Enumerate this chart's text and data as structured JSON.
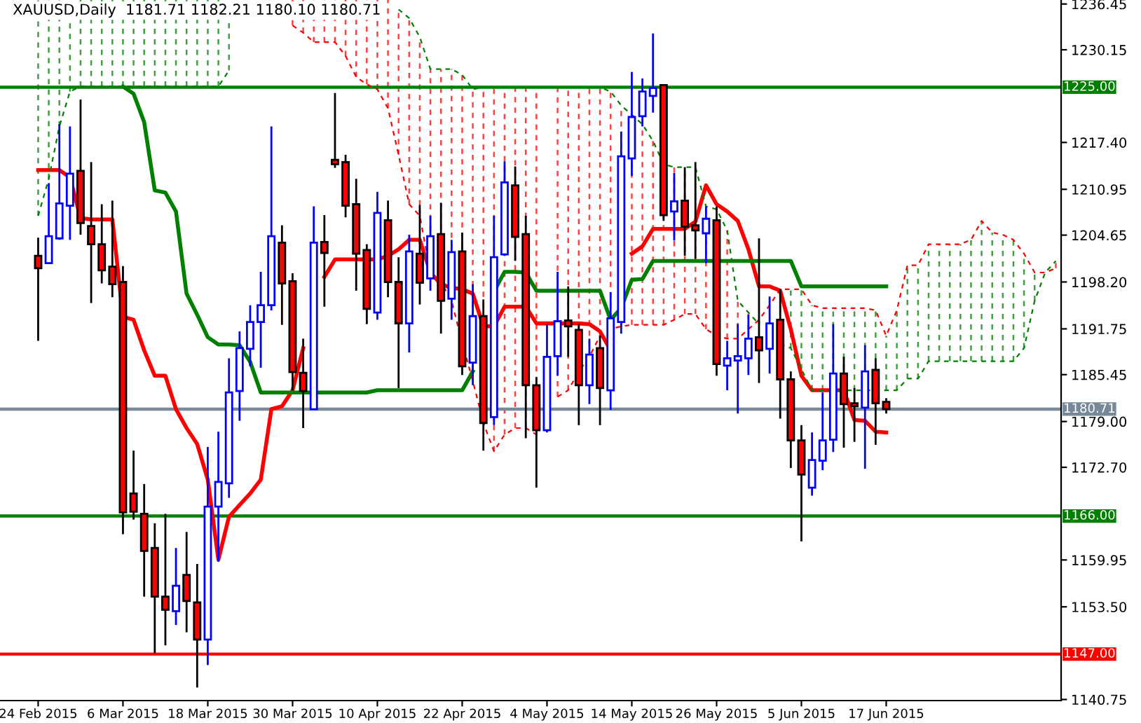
{
  "chart_data": {
    "type": "candlestick",
    "title": "XAUUSD,Daily  1181.71 1182.21 1180.10 1180.71",
    "categories": [
      "24 Feb 2015",
      null,
      null,
      null,
      null,
      null,
      null,
      null,
      "6 Mar 2015",
      null,
      null,
      null,
      null,
      null,
      null,
      null,
      "18 Mar 2015",
      null,
      null,
      null,
      null,
      null,
      null,
      null,
      "30 Mar 2015",
      null,
      null,
      null,
      null,
      null,
      null,
      null,
      "10 Apr 2015",
      null,
      null,
      null,
      null,
      null,
      null,
      null,
      "22 Apr 2015",
      null,
      null,
      null,
      null,
      null,
      null,
      null,
      "4 May 2015",
      null,
      null,
      null,
      null,
      null,
      null,
      null,
      "14 May 2015",
      null,
      null,
      null,
      null,
      null,
      null,
      null,
      "26 May 2015",
      null,
      null,
      null,
      null,
      null,
      null,
      null,
      "5 Jun 2015",
      null,
      null,
      null,
      null,
      null,
      null,
      null,
      "17 Jun 2015",
      null,
      null,
      null,
      null,
      null,
      null,
      null,
      null,
      null,
      null,
      null,
      null,
      null,
      null,
      null,
      null
    ],
    "ohlc": [
      [
        1201.8,
        1204.3,
        1190.1,
        1200.1
      ],
      [
        1200.8,
        1211.8,
        1200.7,
        1204.5
      ],
      [
        1204.2,
        1219.9,
        1204.0,
        1209.0
      ],
      [
        1208.7,
        1219.6,
        1204.0,
        1213.1
      ],
      [
        1213.5,
        1223.3,
        1204.7,
        1206.3
      ],
      [
        1205.9,
        1214.7,
        1195.3,
        1203.4
      ],
      [
        1203.4,
        1208.9,
        1198.0,
        1199.8
      ],
      [
        1200.3,
        1209.4,
        1196.1,
        1197.9
      ],
      [
        1198.2,
        1200.4,
        1163.5,
        1166.5
      ],
      [
        1169.1,
        1175.0,
        1165.5,
        1166.6
      ],
      [
        1166.3,
        1170.4,
        1154.9,
        1161.2
      ],
      [
        1161.6,
        1165.0,
        1147.1,
        1154.9
      ],
      [
        1154.9,
        1166.3,
        1148.2,
        1153.1
      ],
      [
        1152.9,
        1161.6,
        1151.0,
        1156.4
      ],
      [
        1157.9,
        1163.8,
        1150.0,
        1154.3
      ],
      [
        1154.1,
        1159.4,
        1142.4,
        1149.0
      ],
      [
        1149.0,
        1175.5,
        1145.5,
        1167.3
      ],
      [
        1167.3,
        1177.6,
        1159.7,
        1170.7
      ],
      [
        1170.5,
        1187.7,
        1168.5,
        1183.0
      ],
      [
        1183.2,
        1191.4,
        1179.1,
        1189.1
      ],
      [
        1189.0,
        1195.0,
        1186.6,
        1192.7
      ],
      [
        1192.7,
        1199.6,
        1186.4,
        1195.0
      ],
      [
        1195.0,
        1219.6,
        1194.3,
        1204.5
      ],
      [
        1203.6,
        1206.0,
        1192.3,
        1198.0
      ],
      [
        1198.3,
        1199.4,
        1183.3,
        1185.8
      ],
      [
        1185.7,
        1190.4,
        1178.1,
        1183.2
      ],
      [
        1180.7,
        1208.6,
        1180.6,
        1203.6
      ],
      [
        1203.7,
        1207.4,
        1194.8,
        1202.2
      ],
      [
        1215.0,
        1224.2,
        1213.9,
        1214.4
      ],
      [
        1214.7,
        1215.7,
        1207.1,
        1208.7
      ],
      [
        1208.9,
        1212.4,
        1197.0,
        1202.1
      ],
      [
        1202.6,
        1203.4,
        1192.4,
        1194.5
      ],
      [
        1194.0,
        1210.6,
        1193.0,
        1207.7
      ],
      [
        1206.7,
        1209.4,
        1196.1,
        1198.2
      ],
      [
        1198.2,
        1201.6,
        1183.6,
        1192.5
      ],
      [
        1192.5,
        1204.7,
        1188.5,
        1202.4
      ],
      [
        1202.1,
        1208.8,
        1195.1,
        1198.1
      ],
      [
        1198.7,
        1207.3,
        1197.0,
        1204.5
      ],
      [
        1204.8,
        1209.1,
        1191.1,
        1195.6
      ],
      [
        1195.9,
        1204.0,
        1193.0,
        1202.3
      ],
      [
        1202.4,
        1205.0,
        1185.4,
        1186.6
      ],
      [
        1187.1,
        1197.9,
        1184.0,
        1193.5
      ],
      [
        1193.5,
        1195.8,
        1175.0,
        1178.8
      ],
      [
        1179.6,
        1207.3,
        1178.5,
        1201.6
      ],
      [
        1202.0,
        1214.8,
        1201.8,
        1211.9
      ],
      [
        1211.5,
        1214.1,
        1201.1,
        1204.4
      ],
      [
        1204.8,
        1207.3,
        1176.7,
        1184.0
      ],
      [
        1184.0,
        1185.1,
        1169.9,
        1177.8
      ],
      [
        1177.8,
        1192.4,
        1177.5,
        1187.9
      ],
      [
        1188.0,
        1199.6,
        1185.3,
        1192.8
      ],
      [
        1192.9,
        1197.6,
        1187.9,
        1192.1
      ],
      [
        1191.6,
        1192.4,
        1178.5,
        1184.0
      ],
      [
        1184.0,
        1190.4,
        1181.4,
        1188.2
      ],
      [
        1189.1,
        1190.8,
        1178.5,
        1183.6
      ],
      [
        1183.3,
        1196.8,
        1180.6,
        1193.2
      ],
      [
        1192.7,
        1218.9,
        1191.1,
        1215.5
      ],
      [
        1215.2,
        1227.1,
        1212.8,
        1220.9
      ],
      [
        1221.0,
        1226.2,
        1219.6,
        1224.4
      ],
      [
        1223.8,
        1232.4,
        1221.5,
        1224.9
      ],
      [
        1225.3,
        1225.4,
        1206.6,
        1207.4
      ],
      [
        1207.9,
        1213.2,
        1203.9,
        1209.3
      ],
      [
        1209.4,
        1214.0,
        1201.8,
        1205.8
      ],
      [
        1206.0,
        1214.7,
        1201.4,
        1205.3
      ],
      [
        1204.9,
        1208.6,
        1200.8,
        1206.9
      ],
      [
        1206.7,
        1208.6,
        1185.3,
        1186.9
      ],
      [
        1186.7,
        1190.1,
        1183.3,
        1187.7
      ],
      [
        1187.4,
        1192.4,
        1180.1,
        1188.0
      ],
      [
        1187.7,
        1193.7,
        1185.4,
        1190.4
      ],
      [
        1190.6,
        1204.2,
        1184.3,
        1188.8
      ],
      [
        1189.0,
        1196.2,
        1185.6,
        1192.5
      ],
      [
        1193.0,
        1197.2,
        1179.4,
        1184.8
      ],
      [
        1184.8,
        1185.9,
        1172.6,
        1176.4
      ],
      [
        1176.4,
        1178.5,
        1162.5,
        1171.7
      ],
      [
        1169.9,
        1177.5,
        1168.8,
        1173.7
      ],
      [
        1173.6,
        1183.0,
        1172.3,
        1176.4
      ],
      [
        1176.5,
        1192.4,
        1174.8,
        1185.6
      ],
      [
        1185.6,
        1187.9,
        1175.4,
        1181.4
      ],
      [
        1181.5,
        1183.6,
        1176.2,
        1181.1
      ],
      [
        1180.9,
        1189.5,
        1172.5,
        1185.9
      ],
      [
        1186.1,
        1187.7,
        1175.8,
        1181.5
      ],
      [
        1181.71,
        1182.21,
        1180.1,
        1180.71
      ],
      null,
      null,
      null,
      null,
      null,
      null,
      null,
      null,
      null,
      null,
      null,
      null,
      null,
      null,
      null,
      null
    ],
    "series": [
      {
        "type": "line",
        "color": "#ff0000",
        "line_style": "solid",
        "values": [
          1213.6,
          1213.6,
          1213.6,
          1212.6,
          1207.0,
          1206.8,
          1206.8,
          1206.8,
          1193.4,
          1193.0,
          1188.8,
          1185.3,
          1185.3,
          1180.7,
          1178.1,
          1175.9,
          1171.0,
          1160.0,
          1165.9,
          1167.5,
          1169.1,
          1171.0,
          1180.7,
          1181.1,
          1183.3,
          1189.1,
          null,
          1198.9,
          1201.3,
          1201.3,
          1201.3,
          1201.3,
          1201.3,
          1201.8,
          1202.7,
          1204.0,
          1204.0,
          1199.5,
          1197.9,
          1197.4,
          1197.2,
          1196.6,
          1192.1,
          1192.1,
          1194.8,
          1194.8,
          1194.8,
          1192.5,
          1192.5,
          1192.5,
          1192.5,
          1192.5,
          1192.4,
          1191.4,
          1188.8,
          null,
          1202.1,
          1203.1,
          1205.5,
          1205.5,
          1205.5,
          1205.5,
          1206.5,
          1211.5,
          1208.9,
          1207.9,
          1206.6,
          1202.7,
          1197.6,
          1197.6,
          1197.0,
          1191.7,
          1185.3,
          1183.3,
          1183.3,
          1183.3,
          1183.3,
          1179.2,
          1179.1,
          1177.6,
          1177.5,
          null,
          null,
          null,
          null,
          null,
          null,
          null,
          null,
          null,
          null,
          null,
          null,
          null,
          null,
          null,
          null
        ]
      },
      {
        "type": "line",
        "color": "#008000",
        "line_style": "solid",
        "values": [
          null,
          null,
          null,
          null,
          null,
          null,
          null,
          null,
          1225.1,
          1224.1,
          1220.2,
          1210.8,
          1210.5,
          1207.9,
          1196.6,
          1193.7,
          1190.6,
          1189.6,
          1189.6,
          1189.5,
          1187.2,
          1183.0,
          1183.0,
          1183.0,
          1183.0,
          1183.0,
          1183.0,
          1183.0,
          1183.0,
          1183.0,
          1183.0,
          1183.0,
          1183.3,
          1183.3,
          1183.3,
          1183.3,
          1183.3,
          1183.3,
          1183.3,
          1183.3,
          1183.3,
          1185.9,
          null,
          1196.9,
          1199.6,
          1199.6,
          1199.5,
          1197.0,
          1197.0,
          1197.0,
          1197.0,
          1197.0,
          1197.0,
          1197.0,
          1193.0,
          1194.6,
          1198.5,
          1198.6,
          1201.1,
          1201.1,
          1201.1,
          1201.1,
          1201.1,
          1201.1,
          1201.1,
          1201.1,
          1201.1,
          1201.1,
          1201.1,
          1201.1,
          1201.1,
          1201.1,
          1197.6,
          1197.6,
          1197.6,
          1197.6,
          1197.6,
          1197.6,
          1197.6,
          1197.6,
          1197.6,
          null,
          null,
          null,
          null,
          null,
          null,
          null,
          null,
          null,
          null,
          null,
          null,
          null,
          null,
          null,
          null
        ]
      },
      {
        "type": "line",
        "color": "#ff0000",
        "line_style": "dashed",
        "values": [
          null,
          null,
          null,
          null,
          null,
          null,
          null,
          null,
          null,
          null,
          null,
          null,
          null,
          null,
          null,
          null,
          null,
          null,
          null,
          null,
          null,
          null,
          null,
          null,
          1233.5,
          1232.5,
          1231.2,
          1231.2,
          1231.2,
          1229.3,
          1226.4,
          1225.4,
          1224.7,
          1222.1,
          1215.7,
          1208.9,
          1207.3,
          1199.5,
          1198.2,
          1195.6,
          1189.8,
          1184.6,
          1178.8,
          1174.9,
          1177.2,
          1178.1,
          1178.1,
          1177.2,
          null,
          1182.4,
          1183.3,
          1185.9,
          1187.9,
          1190.8,
          1191.7,
          1192.1,
          1192.3,
          1192.3,
          1192.3,
          1192.3,
          1193.0,
          1193.8,
          1193.8,
          1191.7,
          1190.8,
          1190.4,
          1190.4,
          1191.7,
          1193.0,
          1195.0,
          1197.2,
          1197.2,
          1197.2,
          1195.0,
          1194.6,
          1194.6,
          1194.6,
          1194.6,
          1194.6,
          1194.3,
          1190.8,
          1194.3,
          1200.5,
          1200.5,
          1203.4,
          1203.4,
          1203.4,
          1203.4,
          1204.0,
          1206.6,
          1205.0,
          1204.7,
          1204.0,
          1202.1,
          1199.5,
          1199.5,
          1200.1
        ]
      },
      {
        "type": "line",
        "color": "#008000",
        "line_style": "dashed",
        "values": [
          1207.3,
          1212.4,
          1219.6,
          1224.4,
          1225.1,
          1225.1,
          1225.1,
          1225.1,
          1225.1,
          1225.1,
          1225.1,
          1225.1,
          1225.1,
          1225.1,
          1225.1,
          1225.1,
          1225.1,
          1225.1,
          1227.3,
          null,
          null,
          null,
          null,
          null,
          null,
          null,
          null,
          null,
          null,
          null,
          null,
          null,
          null,
          null,
          1235.7,
          1234.5,
          1231.9,
          1227.5,
          1227.5,
          1227.5,
          1226.7,
          1224.7,
          1225.0,
          1225.0,
          1225.0,
          1225.0,
          1225.0,
          1225.0,
          1225.0,
          1225.0,
          1225.0,
          1225.0,
          1225.0,
          1225.0,
          1224.4,
          1222.5,
          1221.2,
          1219.9,
          1217.6,
          1214.4,
          1214.0,
          1214.0,
          1214.0,
          1208.6,
          1208.2,
          1205.3,
          1195.6,
          1194.0,
          1192.4,
          null,
          1189.7,
          1189.1,
          1186.2,
          1183.3,
          1183.3,
          1183.3,
          1183.3,
          1183.3,
          1183.3,
          1183.3,
          1183.3,
          1183.3,
          1184.9,
          1184.9,
          1187.3,
          1187.3,
          1187.3,
          1187.3,
          1187.3,
          1187.3,
          1187.3,
          1187.3,
          1187.3,
          1189.1,
          1195.6,
          1199.5,
          1201.1
        ]
      }
    ],
    "ylim": [
      1140.6,
      1237.0
    ],
    "yticks": [
      {
        "value": 1236.45,
        "label": "1236.45"
      },
      {
        "value": 1230.15,
        "label": "1230.15"
      },
      {
        "value": 1217.4,
        "label": "1217.40"
      },
      {
        "value": 1210.95,
        "label": "1210.95"
      },
      {
        "value": 1204.65,
        "label": "1204.65"
      },
      {
        "value": 1198.2,
        "label": "1198.20"
      },
      {
        "value": 1191.75,
        "label": "1191.75"
      },
      {
        "value": 1185.45,
        "label": "1185.45"
      },
      {
        "value": 1179.0,
        "label": "1179.00"
      },
      {
        "value": 1172.7,
        "label": "1172.70"
      },
      {
        "value": 1159.95,
        "label": "1159.95"
      },
      {
        "value": 1153.5,
        "label": "1153.50"
      },
      {
        "value": 1140.75,
        "label": "1140.75"
      }
    ],
    "ref_lines": [
      {
        "axis": "y",
        "value": 1225.0,
        "label": "1225.00",
        "color": "#008000"
      },
      {
        "axis": "y",
        "value": 1166.0,
        "label": "1166.00",
        "color": "#008000"
      },
      {
        "axis": "y",
        "value": 1147.0,
        "label": "1147.00",
        "color": "#ff0000"
      },
      {
        "axis": "y",
        "value": 1180.71,
        "label": "1180.71",
        "color": "#778899"
      }
    ],
    "grid": false,
    "legend": false
  }
}
